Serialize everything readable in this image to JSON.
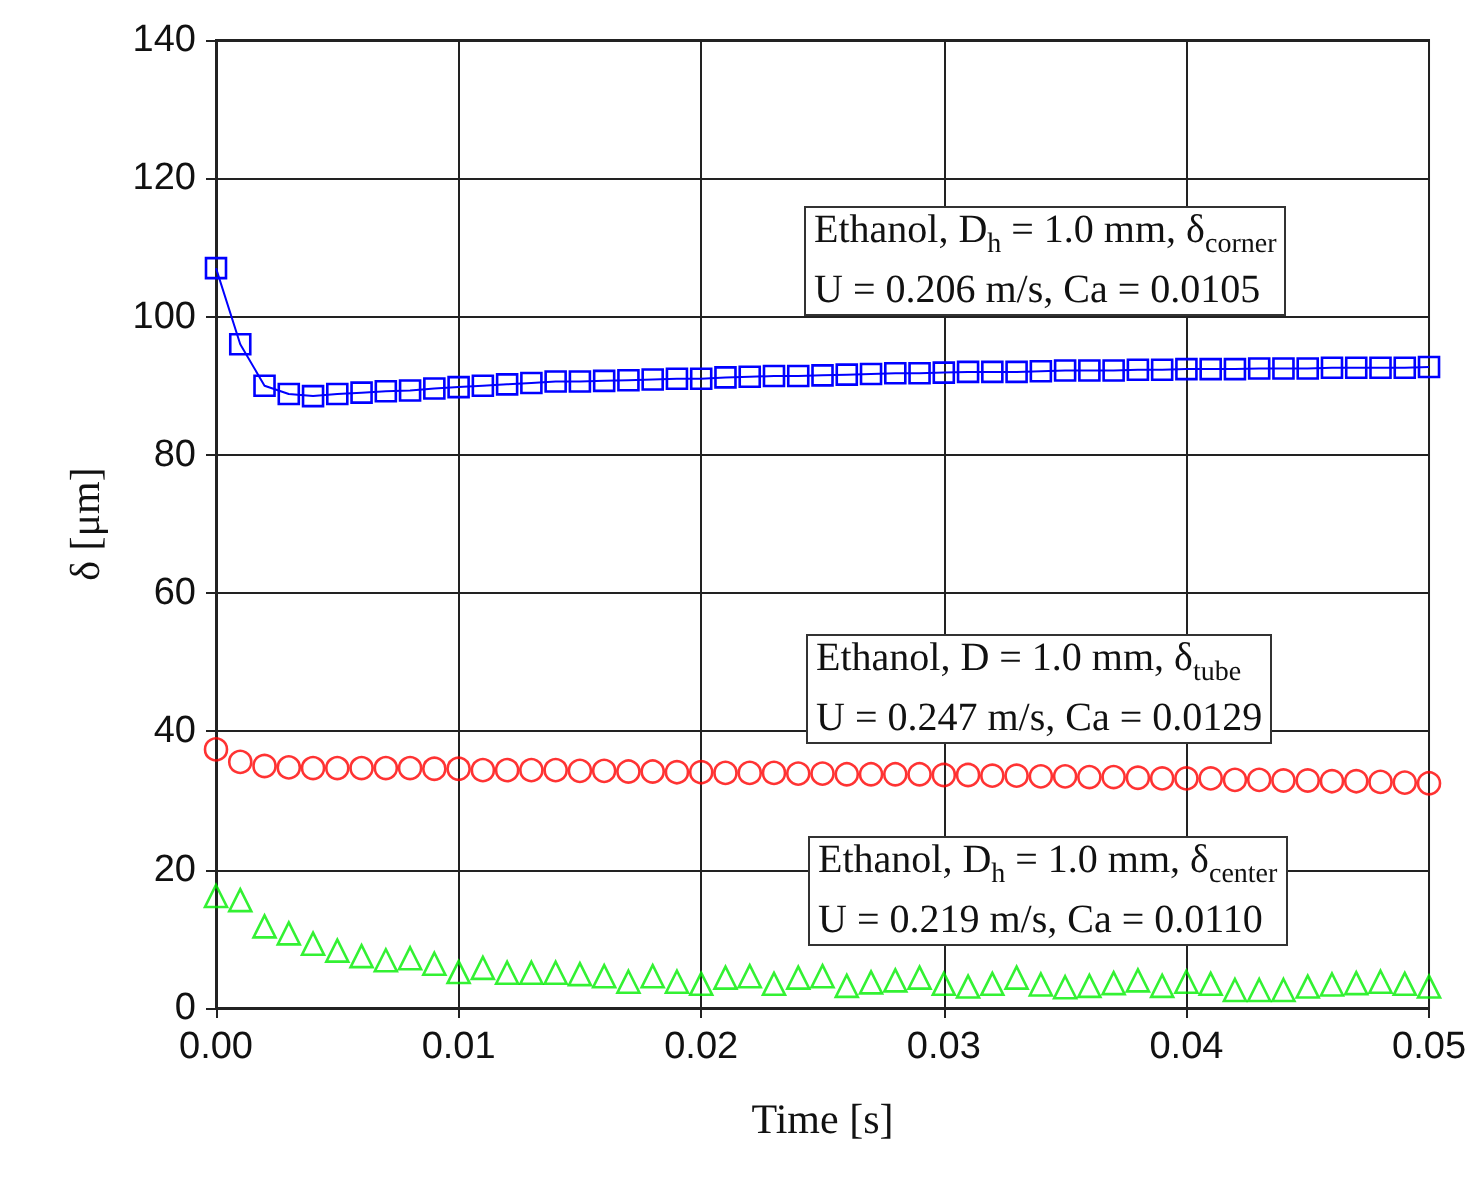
{
  "chart_data": {
    "type": "line",
    "xlabel": "Time [s]",
    "ylabel": "δ [μm]",
    "x": [
      0,
      0.001,
      0.002,
      0.003,
      0.004,
      0.005,
      0.006,
      0.007,
      0.008,
      0.009,
      0.01,
      0.011,
      0.012,
      0.013,
      0.014,
      0.015,
      0.016,
      0.017,
      0.018,
      0.019,
      0.02,
      0.021,
      0.022,
      0.023,
      0.024,
      0.025,
      0.026,
      0.027,
      0.028,
      0.029,
      0.03,
      0.031,
      0.032,
      0.033,
      0.034,
      0.035,
      0.036,
      0.037,
      0.038,
      0.039,
      0.04,
      0.041,
      0.042,
      0.043,
      0.044,
      0.045,
      0.046,
      0.047,
      0.048,
      0.049,
      0.05
    ],
    "series": [
      {
        "marker": "square",
        "color": "#0000ff",
        "values": [
          107,
          96,
          90,
          88.8,
          88.5,
          88.8,
          89,
          89.2,
          89.3,
          89.6,
          89.8,
          90,
          90.2,
          90.4,
          90.6,
          90.6,
          90.7,
          90.8,
          90.9,
          91,
          91,
          91.2,
          91.3,
          91.4,
          91.4,
          91.5,
          91.6,
          91.7,
          91.8,
          91.8,
          91.9,
          92,
          92,
          92,
          92.1,
          92.2,
          92.2,
          92.2,
          92.3,
          92.3,
          92.4,
          92.4,
          92.4,
          92.5,
          92.5,
          92.5,
          92.6,
          92.6,
          92.6,
          92.6,
          92.7
        ]
      },
      {
        "type": "scatter",
        "marker": "circle",
        "color": "#ff0000",
        "values": [
          37.4,
          35.6,
          35,
          34.8,
          34.7,
          34.7,
          34.7,
          34.7,
          34.7,
          34.6,
          34.6,
          34.4,
          34.4,
          34.4,
          34.4,
          34.3,
          34.3,
          34.2,
          34.2,
          34.1,
          34.1,
          34,
          34,
          34,
          33.9,
          33.9,
          33.8,
          33.8,
          33.8,
          33.8,
          33.7,
          33.7,
          33.6,
          33.6,
          33.5,
          33.5,
          33.4,
          33.4,
          33.3,
          33.2,
          33.2,
          33.2,
          33,
          33,
          32.9,
          32.9,
          32.8,
          32.8,
          32.7,
          32.6,
          32.5
        ]
      },
      {
        "type": "scatter",
        "marker": "triangle",
        "color": "#00ee00",
        "values": [
          16.2,
          15.6,
          11.8,
          10.8,
          9.3,
          8.3,
          7.5,
          6.9,
          7.2,
          6.4,
          5.2,
          5.8,
          5.1,
          5.1,
          5.1,
          4.9,
          4.6,
          3.8,
          4.6,
          3.8,
          3.5,
          4.4,
          4.6,
          3.5,
          4.4,
          4.6,
          3.2,
          3.7,
          4,
          4.4,
          3.5,
          3.1,
          3.5,
          4.4,
          3.4,
          3,
          3.2,
          3.6,
          4,
          3.2,
          3.8,
          3.5,
          2.6,
          2.6,
          2.6,
          3.1,
          3.4,
          3.6,
          3.8,
          3.5,
          3.1
        ]
      }
    ],
    "xlim": [
      0,
      0.05
    ],
    "xticks": [
      {
        "value": 0,
        "label": "0.00"
      },
      {
        "value": 0.01,
        "label": "0.01"
      },
      {
        "value": 0.02,
        "label": "0.02"
      },
      {
        "value": 0.03,
        "label": "0.03"
      },
      {
        "value": 0.04,
        "label": "0.04"
      },
      {
        "value": 0.05,
        "label": "0.05"
      }
    ],
    "ylim": [
      0,
      140
    ],
    "yticks": [
      0,
      20,
      40,
      60,
      80,
      100,
      120,
      140
    ],
    "grid": true,
    "annotations": [
      "Ethanol, D$_{h}$ = 1.0 mm, δ$_{corner}$\nU = 0.206 m/s, Ca = 0.0105",
      "Ethanol, D = 1.0 mm, δ$_{tube}$\nU = 0.247 m/s, Ca = 0.0129",
      "Ethanol, D$_{h}$ = 1.0 mm, δ$_{center}$\nU = 0.219 m/s, Ca = 0.0110"
    ]
  }
}
